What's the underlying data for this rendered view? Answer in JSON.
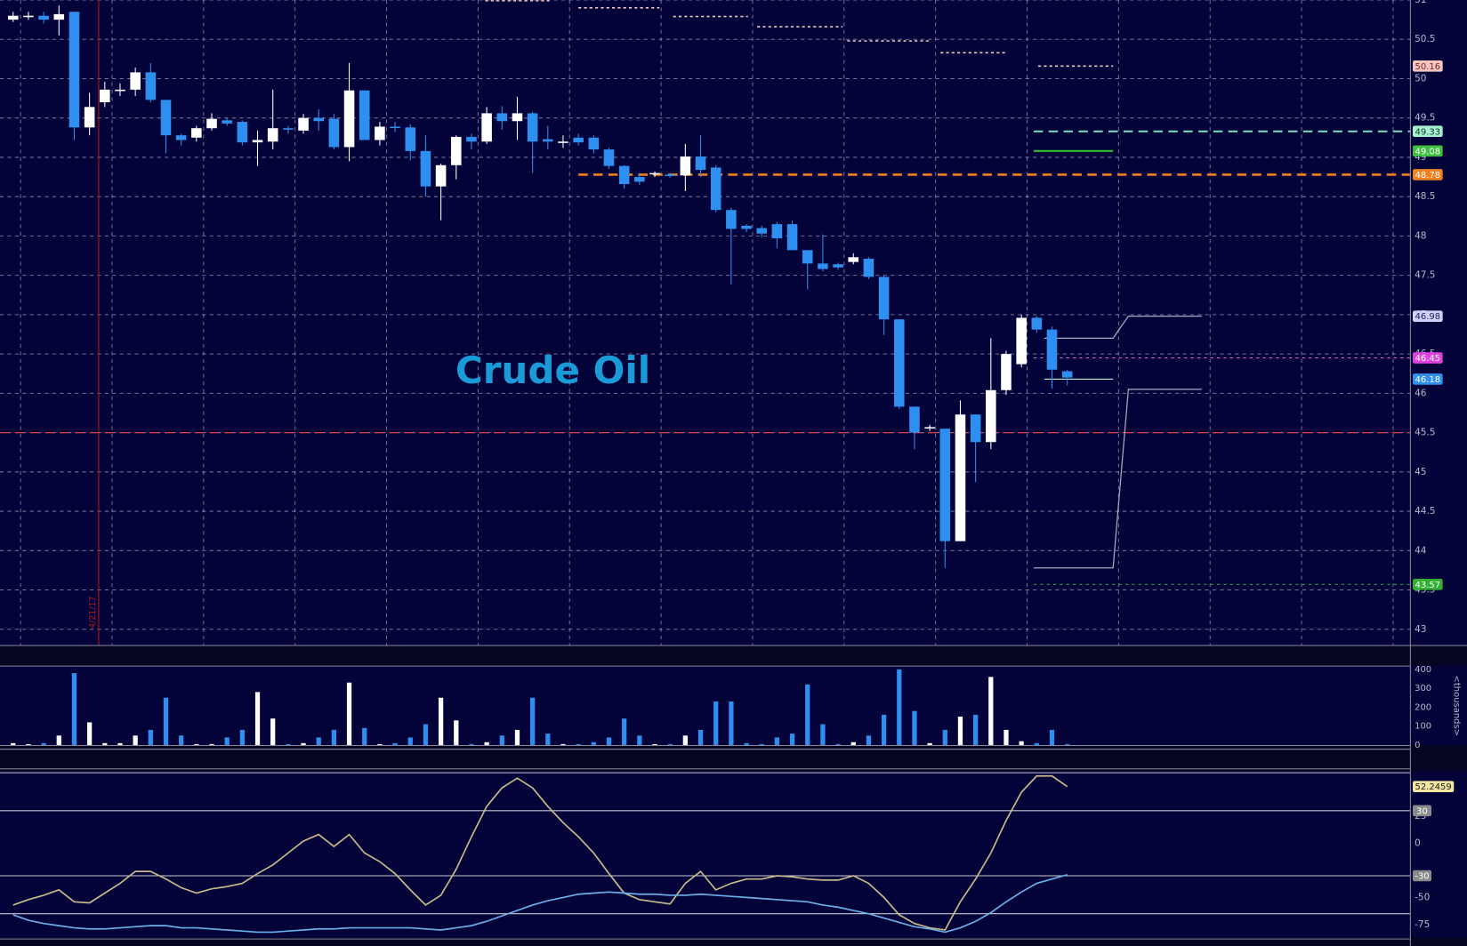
{
  "chart_data": [
    {
      "type": "candlestick",
      "title": "Crude Oil",
      "title_color": "#1a9ad6",
      "open": [
        50.75,
        50.8,
        50.8,
        50.75,
        50.85,
        49.38,
        49.7,
        49.85,
        49.86,
        50.08,
        49.73,
        49.28,
        49.25,
        49.37,
        49.47,
        49.45,
        49.19,
        49.2,
        49.37,
        49.34,
        49.5,
        49.49,
        49.13,
        49.85,
        49.22,
        49.39,
        49.38,
        49.08,
        48.63,
        48.9,
        49.26,
        49.2,
        49.56,
        49.46,
        49.56,
        49.23,
        49.2,
        49.25,
        49.25,
        49.1,
        48.89,
        48.75,
        48.8,
        48.78,
        48.77,
        49.01,
        48.87,
        48.33,
        48.13,
        48.1,
        48.15,
        48.15,
        47.82,
        47.65,
        47.64,
        47.67,
        47.71,
        47.48,
        46.94,
        45.83,
        45.56,
        45.55,
        44.12,
        45.73,
        45.38,
        46.04,
        46.37,
        46.96,
        46.81,
        46.28
      ],
      "high": [
        50.85,
        50.85,
        50.85,
        50.93,
        50.85,
        49.82,
        49.96,
        49.94,
        50.14,
        50.2,
        49.73,
        49.3,
        49.4,
        49.56,
        49.5,
        49.47,
        49.34,
        49.86,
        49.4,
        49.55,
        49.61,
        49.55,
        50.2,
        49.85,
        49.45,
        49.45,
        49.42,
        49.28,
        48.92,
        49.28,
        49.3,
        49.64,
        49.65,
        49.77,
        49.58,
        49.4,
        49.28,
        49.3,
        49.28,
        49.12,
        48.9,
        48.8,
        48.82,
        48.8,
        49.17,
        49.28,
        48.9,
        48.36,
        48.15,
        48.13,
        48.18,
        48.2,
        47.82,
        48.02,
        47.66,
        47.78,
        47.73,
        47.5,
        46.94,
        45.83,
        45.6,
        45.55,
        45.91,
        45.73,
        46.7,
        46.54,
        47.0,
        46.98,
        46.85,
        46.3
      ],
      "low": [
        50.72,
        50.75,
        50.7,
        50.55,
        49.22,
        49.28,
        49.64,
        49.78,
        49.78,
        49.7,
        49.05,
        49.15,
        49.2,
        49.34,
        49.4,
        49.15,
        48.89,
        49.1,
        49.3,
        49.3,
        49.34,
        49.1,
        48.95,
        49.22,
        49.15,
        49.32,
        48.96,
        48.5,
        48.2,
        48.72,
        49.1,
        49.17,
        49.35,
        49.22,
        48.8,
        49.1,
        49.12,
        49.15,
        49.05,
        48.85,
        48.6,
        48.65,
        48.75,
        48.74,
        48.57,
        48.75,
        48.3,
        47.38,
        48.05,
        47.98,
        47.85,
        47.82,
        47.32,
        47.55,
        47.57,
        47.64,
        47.45,
        46.74,
        45.8,
        45.29,
        45.52,
        43.78,
        44.12,
        44.87,
        45.29,
        45.98,
        46.33,
        46.77,
        46.06,
        46.1
      ],
      "close": [
        50.8,
        50.8,
        50.75,
        50.82,
        49.38,
        49.64,
        49.86,
        49.86,
        50.08,
        49.73,
        49.28,
        49.22,
        49.37,
        49.49,
        49.43,
        49.19,
        49.22,
        49.37,
        49.36,
        49.5,
        49.46,
        49.13,
        49.85,
        49.22,
        49.39,
        49.38,
        49.08,
        48.63,
        48.9,
        49.26,
        49.2,
        49.56,
        49.46,
        49.56,
        49.2,
        49.2,
        49.2,
        49.19,
        49.1,
        48.89,
        48.66,
        48.69,
        48.8,
        48.77,
        49.01,
        48.84,
        48.33,
        48.09,
        48.09,
        48.03,
        47.97,
        47.82,
        47.65,
        47.58,
        47.6,
        47.73,
        47.48,
        46.94,
        45.83,
        45.5,
        45.57,
        44.12,
        45.73,
        45.38,
        46.04,
        46.5,
        46.96,
        46.81,
        46.3,
        46.2
      ],
      "up_color": "#ffffff",
      "down_color": "#2f8ff0",
      "xlim": [
        -0.86,
        91.43
      ],
      "ylim": [
        42.8,
        51
      ],
      "yticks": [
        43,
        43.5,
        44,
        44.5,
        45,
        45.5,
        46,
        46.5,
        47,
        47.5,
        48,
        48.5,
        49,
        49.5,
        50,
        50.5,
        51
      ],
      "grid": true,
      "levels": [
        {
          "value": 50.99,
          "start": 30.9,
          "end": 35.1,
          "color": "#f0c8c0",
          "dash": "3 3",
          "width": 1.5
        },
        {
          "value": 50.9,
          "start": 37,
          "end": 42.3,
          "color": "#f0c8c0",
          "dash": "3 3",
          "width": 1.5
        },
        {
          "value": 50.79,
          "start": 43.2,
          "end": 48.1,
          "color": "#f0c8c0",
          "dash": "3 3",
          "width": 1.5
        },
        {
          "value": 50.66,
          "start": 48.7,
          "end": 54.3,
          "color": "#f0c8c0",
          "dash": "3 3",
          "width": 1.5
        },
        {
          "value": 50.48,
          "start": 54.6,
          "end": 60.1,
          "color": "#f0c8c0",
          "dash": "3 3",
          "width": 1.5
        },
        {
          "value": 50.33,
          "start": 60.7,
          "end": 65,
          "color": "#f0c8c0",
          "dash": "3 3",
          "width": 1.5
        },
        {
          "value": 50.16,
          "start": 67.1,
          "end": 72,
          "color": "#f0c8c0",
          "dash": "3 3",
          "width": 1.5
        },
        {
          "value": 49.33,
          "start": 66.8,
          "end": 91.43,
          "color": "#7de0c0",
          "dash": "10 6",
          "width": 2
        },
        {
          "value": 49.08,
          "start": 66.8,
          "end": 72,
          "color": "#30c030",
          "dash": "none",
          "width": 2
        },
        {
          "value": 48.78,
          "start": 37,
          "end": 91.43,
          "color": "#f08020",
          "dash": "10 6",
          "width": 2.5
        },
        {
          "value": 46.45,
          "start": 66.8,
          "end": 91.43,
          "color": "#e060e0",
          "dash": "3 4",
          "width": 1
        },
        {
          "value": 46.18,
          "start": 67.5,
          "end": 72,
          "color": "#c0f0d0",
          "dash": "none",
          "width": 1
        },
        {
          "value": 45.5,
          "start": -0.86,
          "end": 91.43,
          "color": "#e04040",
          "dash": "10 6",
          "width": 1.2
        },
        {
          "value": 43.57,
          "start": 66.8,
          "end": 91.43,
          "color": "#30a030",
          "dash": "3 4",
          "width": 1
        }
      ],
      "projections": [
        {
          "x": [
            67.5,
            72,
            73,
            77.8
          ],
          "y": [
            46.7,
            46.7,
            46.98,
            46.98
          ],
          "color": "#a8a8c0"
        },
        {
          "x": [
            66.8,
            72,
            73,
            77.8
          ],
          "y": [
            43.78,
            43.78,
            46.05,
            46.05
          ],
          "color": "#a8a8c0"
        }
      ],
      "price_tags": [
        {
          "value": 50.16,
          "color": "#f7c6c0",
          "text_color": "#802020"
        },
        {
          "value": 49.33,
          "color": "#a8f0d0",
          "text_color": "#104030"
        },
        {
          "value": 49.08,
          "color": "#40c040",
          "text_color": "#ffffff"
        },
        {
          "value": 48.78,
          "color": "#f08020",
          "text_color": "#ffffff"
        },
        {
          "value": 46.98,
          "color": "#d0d0f8",
          "text_color": "#202060"
        },
        {
          "value": 46.45,
          "color": "#e040e0",
          "text_color": "#ffffff"
        },
        {
          "value": 46.18,
          "color": "#3090f0",
          "text_color": "#ffffff"
        },
        {
          "value": 43.57,
          "color": "#30b030",
          "text_color": "#ffffff"
        }
      ],
      "date_marker": {
        "x": 5.6,
        "label": "4/21/17",
        "color": "#b01818"
      }
    },
    {
      "type": "bar",
      "y_label": "<thousands>",
      "values": [
        10,
        5,
        10,
        50,
        380,
        120,
        10,
        10,
        50,
        80,
        250,
        50,
        5,
        5,
        40,
        80,
        280,
        140,
        5,
        10,
        40,
        80,
        330,
        90,
        5,
        10,
        40,
        110,
        250,
        130,
        5,
        15,
        50,
        80,
        250,
        60,
        5,
        5,
        15,
        40,
        140,
        50,
        5,
        5,
        50,
        80,
        230,
        230,
        10,
        5,
        40,
        60,
        320,
        110,
        5,
        15,
        50,
        160,
        400,
        180,
        10,
        80,
        150,
        160,
        360,
        80,
        20,
        10,
        80,
        5
      ],
      "ylim": [
        0,
        420
      ],
      "yticks": [
        0,
        100,
        200,
        300,
        400
      ]
    },
    {
      "type": "line",
      "series": [
        {
          "color": "#c8b98a",
          "tag_color": "#f0e6a0",
          "values": [
            -57,
            -52,
            -48,
            -43,
            -54,
            -55,
            -46,
            -37,
            -26,
            -26,
            -33,
            -41,
            -46,
            -42,
            -40,
            -37,
            -28,
            -20,
            -9,
            2,
            8,
            -3,
            8,
            -9,
            -17,
            -28,
            -43,
            -57,
            -48,
            -24,
            6,
            34,
            51,
            60,
            51,
            34,
            19,
            6,
            -9,
            -28,
            -46,
            -52,
            -54,
            -56,
            -37,
            -26,
            -43,
            -37,
            -33,
            -33,
            -30,
            -31,
            -33,
            -34,
            -34,
            -30,
            -37,
            -50,
            -66,
            -74,
            -78,
            -80,
            -54,
            -33,
            -9,
            21,
            47,
            62,
            62,
            52.2459
          ]
        },
        {
          "color": "#6aaee8",
          "values": [
            -66,
            -71,
            -74,
            -76,
            -78,
            -79,
            -79,
            -78,
            -77,
            -76,
            -76,
            -78,
            -78,
            -79,
            -80,
            -81,
            -82,
            -82,
            -81,
            -80,
            -79,
            -79,
            -78,
            -78,
            -78,
            -78,
            -78,
            -79,
            -80,
            -78,
            -76,
            -72,
            -67,
            -62,
            -57,
            -53,
            -50,
            -47,
            -46,
            -45,
            -46,
            -47,
            -47,
            -48,
            -48,
            -47,
            -48,
            -49,
            -50,
            -51,
            -52,
            -53,
            -54,
            -57,
            -59,
            -62,
            -65,
            -69,
            -73,
            -77,
            -79,
            -82,
            -78,
            -72,
            -64,
            -54,
            -45,
            -37,
            -33,
            -29
          ]
        }
      ],
      "ylim": [
        -87,
        66.4
      ],
      "yticks": [
        25,
        0,
        -50,
        -75
      ],
      "levels": [
        {
          "value": 65,
          "tagged": false
        },
        {
          "value": 30,
          "tagged": true
        },
        {
          "value": -30,
          "tagged": true
        },
        {
          "value": -65,
          "tagged": false
        }
      ]
    }
  ]
}
